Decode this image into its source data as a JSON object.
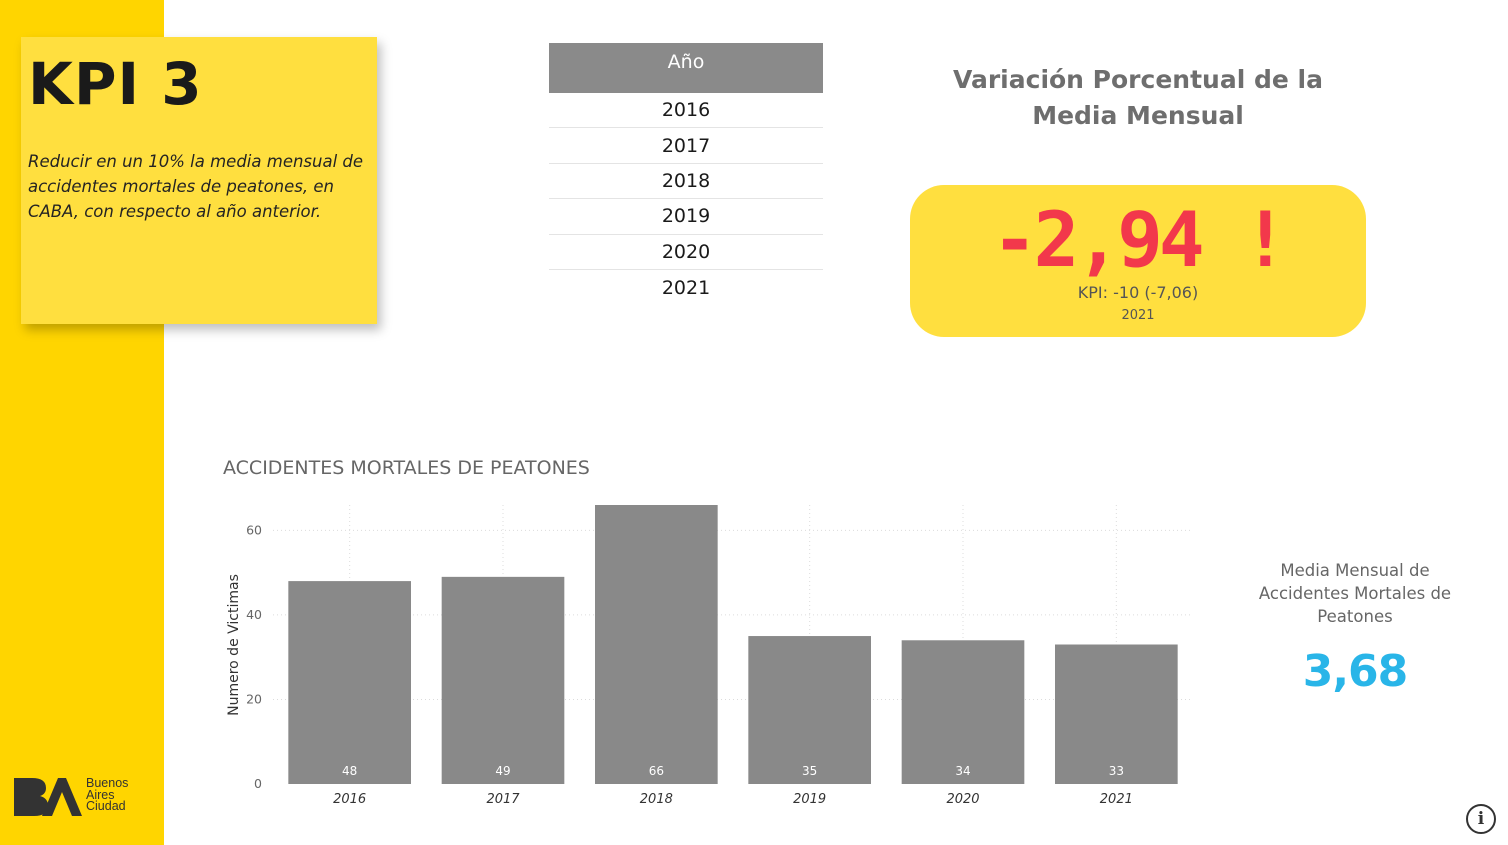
{
  "kpi": {
    "title": "KPI 3",
    "description": "Reducir en un 10% la media mensual de accidentes mortales de peatones, en CABA, con respecto al año anterior."
  },
  "logo": {
    "lines": [
      "Buenos",
      "Aires",
      "Ciudad"
    ],
    "color": "#333333"
  },
  "slicer": {
    "header": "Año",
    "items": [
      "2016",
      "2017",
      "2018",
      "2019",
      "2020",
      "2021"
    ]
  },
  "variation": {
    "title": "Variación Porcentual de la Media Mensual",
    "value": "-2,94 !",
    "target": "KPI: -10 (-7,06)",
    "year": "2021",
    "value_color": "#F2384B"
  },
  "media": {
    "label": "Media Mensual de Accidentes Mortales de Peatones",
    "value": "3,68",
    "value_color": "#29B5E8"
  },
  "info_icon": "info-icon",
  "colors": {
    "sidebar": "#FFD500",
    "card": "#FFDF3F",
    "bar": "#898989",
    "slicer_header": "#8A8A8A"
  },
  "chart_data": {
    "type": "bar",
    "title": "ACCIDENTES MORTALES DE PEATONES",
    "xlabel": "",
    "ylabel": "Numero de Victimas",
    "categories": [
      "2016",
      "2017",
      "2018",
      "2019",
      "2020",
      "2021"
    ],
    "values": [
      48,
      49,
      66,
      35,
      34,
      33
    ],
    "data_labels": [
      "48",
      "49",
      "66",
      "35",
      "34",
      "33"
    ],
    "yticks": [
      0,
      20,
      40,
      60
    ],
    "ytick_labels": [
      "0",
      "20",
      "40",
      "60"
    ],
    "ylim": [
      0,
      66
    ],
    "grid": true,
    "legend": "none"
  }
}
